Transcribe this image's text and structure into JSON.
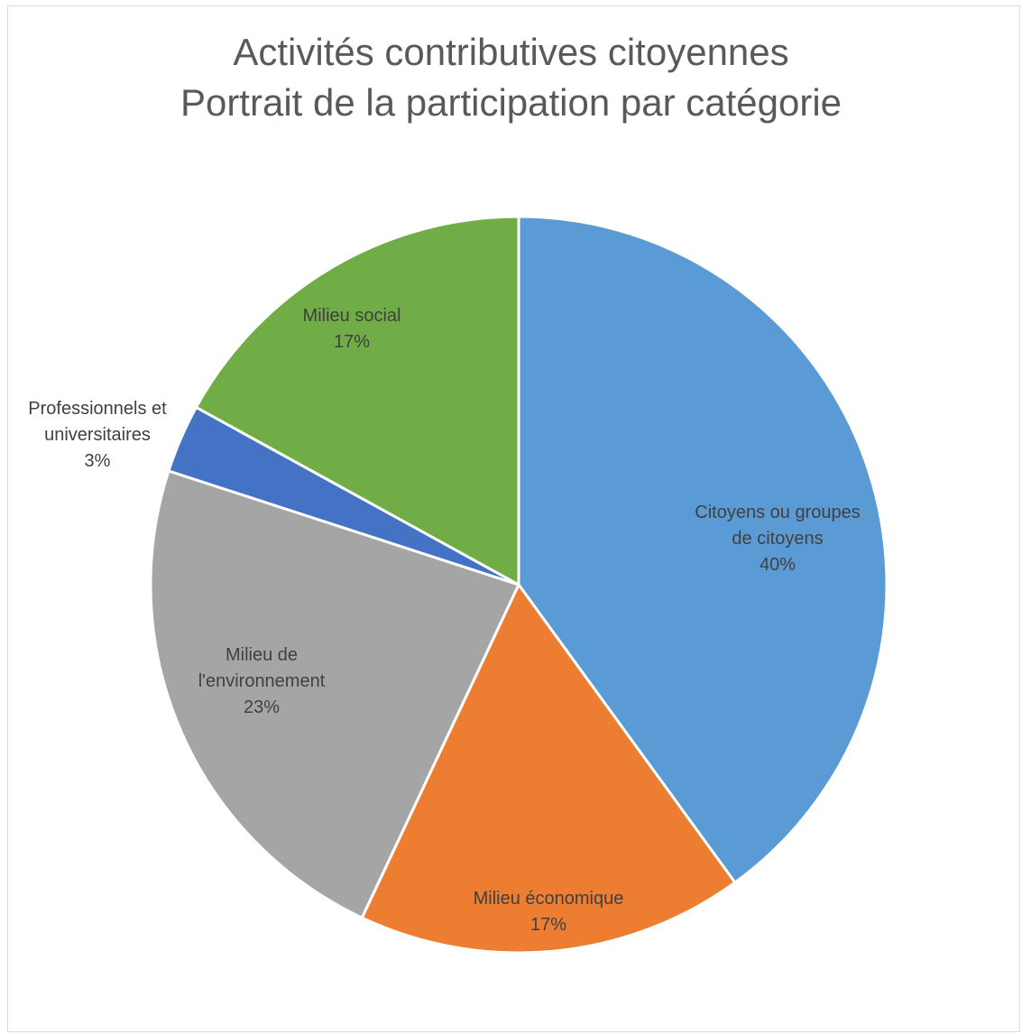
{
  "chart_data": {
    "type": "pie",
    "title": "Activités contributives citoyennes",
    "subtitle": "Portrait de la participation par catégorie",
    "slices": [
      {
        "label_lines": [
          "Citoyens ou groupes",
          "de citoyens"
        ],
        "value": 40,
        "value_label": "40%",
        "color": "#5b9bd5"
      },
      {
        "label_lines": [
          "Milieu économique"
        ],
        "value": 17,
        "value_label": "17%",
        "color": "#ed7d31"
      },
      {
        "label_lines": [
          "Milieu de",
          "l'environnement"
        ],
        "value": 23,
        "value_label": "23%",
        "color": "#a5a5a5"
      },
      {
        "label_lines": [
          "Professionnels et",
          "universitaires"
        ],
        "value": 3,
        "value_label": "3%",
        "color": "#4472c4"
      },
      {
        "label_lines": [
          "Milieu social"
        ],
        "value": 17,
        "value_label": "17%",
        "color": "#70ad47"
      }
    ],
    "start": "top",
    "direction": "clockwise",
    "legend": "none"
  }
}
